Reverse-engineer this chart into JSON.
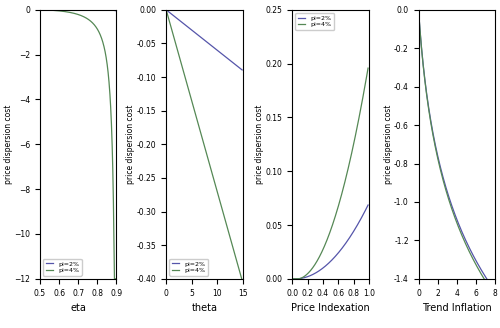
{
  "panel1": {
    "xlabel": "eta",
    "ylabel": "price dispersion cost",
    "xlim": [
      0.5,
      0.9
    ],
    "ylim": [
      -12,
      0
    ],
    "yticks": [
      0,
      -2,
      -4,
      -6,
      -8,
      -10,
      -12
    ],
    "xticks": [
      0.5,
      0.6,
      0.7,
      0.8,
      0.9
    ],
    "pi2_color": "#5555aa",
    "pi4_color": "#558855"
  },
  "panel2": {
    "xlabel": "theta",
    "ylabel": "price dispersion cost",
    "xlim": [
      0,
      15
    ],
    "ylim": [
      -0.4,
      0
    ],
    "yticks": [
      0,
      -0.05,
      -0.1,
      -0.15,
      -0.2,
      -0.25,
      -0.3,
      -0.35,
      -0.4
    ],
    "xticks": [
      0,
      5,
      10,
      15
    ],
    "pi2_color": "#5555aa",
    "pi4_color": "#558855"
  },
  "panel3": {
    "xlabel": "Price Indexation",
    "ylabel": "price dispersion cost",
    "xlim": [
      0,
      1
    ],
    "ylim": [
      0,
      0.25
    ],
    "yticks": [
      0,
      0.05,
      0.1,
      0.15,
      0.2,
      0.25
    ],
    "xticks": [
      0,
      0.2,
      0.4,
      0.6,
      0.8,
      1.0
    ],
    "pi2_color": "#5555aa",
    "pi4_color": "#558855"
  },
  "panel4": {
    "xlabel": "Trend Inflation",
    "ylabel": "price dispersion cost",
    "xlim": [
      0,
      8
    ],
    "ylim": [
      -1.4,
      0
    ],
    "yticks": [
      0,
      -0.2,
      -0.4,
      -0.6,
      -0.8,
      -1.0,
      -1.2,
      -1.4
    ],
    "xticks": [
      0,
      2,
      4,
      6,
      8
    ],
    "pi2_color": "#5555aa",
    "pi4_color": "#558855"
  },
  "legend_labels": [
    "pi=2%",
    "pi=4%"
  ]
}
